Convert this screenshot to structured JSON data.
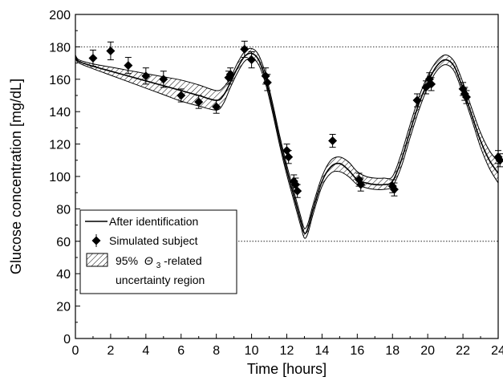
{
  "chart_data": {
    "type": "line",
    "xlabel": "Time [hours]",
    "ylabel": "Glucose concentration [mg/dL]",
    "xlim": [
      0,
      24
    ],
    "ylim": [
      0,
      200
    ],
    "x_ticks": [
      0,
      2,
      4,
      6,
      8,
      10,
      12,
      14,
      16,
      18,
      20,
      22,
      24
    ],
    "y_ticks": [
      0,
      20,
      40,
      60,
      80,
      100,
      120,
      140,
      160,
      180,
      200
    ],
    "reference_lines": [
      180,
      60
    ],
    "grid": false,
    "legend_position": "bottom-left",
    "legend": {
      "line_label": "After identification",
      "marker_label": "Simulated subject",
      "band_label_prefix": "95%",
      "band_label_symbol": "Θ",
      "band_label_subscript": "3",
      "band_label_suffix": "-related",
      "band_label_line2": "uncertainty region"
    },
    "series": [
      {
        "name": "After identification",
        "kind": "line",
        "x": [
          0,
          0.2,
          1,
          2,
          3,
          4,
          5,
          6,
          7,
          8,
          8.4,
          8.8,
          9.2,
          9.6,
          10,
          10.4,
          10.8,
          11.2,
          11.6,
          12,
          12.4,
          12.8,
          13.0,
          13.2,
          13.5,
          14,
          14.5,
          15,
          15.5,
          16,
          16.5,
          17,
          17.5,
          18,
          18.5,
          19,
          19.5,
          20,
          20.5,
          21,
          21.5,
          22,
          22.5,
          23,
          23.5,
          24
        ],
        "y": [
          174,
          171,
          168,
          165,
          162,
          159,
          156,
          153,
          150,
          147,
          150,
          158,
          167,
          174,
          176,
          172,
          160,
          142,
          122,
          104,
          88,
          72,
          65,
          68,
          80,
          97,
          106,
          108,
          104,
          98,
          96,
          95,
          95,
          97,
          110,
          128,
          145,
          158,
          168,
          172,
          168,
          154,
          138,
          122,
          110,
          102
        ]
      },
      {
        "name": "95% Θ3-related uncertainty region",
        "kind": "band",
        "x": [
          0,
          0.2,
          1,
          2,
          3,
          4,
          5,
          6,
          7,
          8,
          8.4,
          8.8,
          9.2,
          9.6,
          10,
          10.4,
          10.8,
          11.2,
          11.6,
          12,
          12.4,
          12.8,
          13.0,
          13.2,
          13.5,
          14,
          14.5,
          15,
          15.5,
          16,
          16.5,
          17,
          17.5,
          18,
          18.5,
          19,
          19.5,
          20,
          20.5,
          21,
          21.5,
          22,
          22.5,
          23,
          23.5,
          24
        ],
        "lower": [
          173,
          170,
          166.5,
          162.5,
          158.5,
          154.5,
          150.5,
          146.5,
          143.5,
          141,
          145,
          155,
          164,
          171,
          173,
          169,
          157,
          139,
          119,
          101,
          85,
          69,
          62,
          65,
          77,
          94,
          102,
          103,
          100,
          95,
          93,
          92,
          92,
          94,
          106,
          124,
          141,
          155,
          165,
          169,
          165,
          151,
          135,
          118,
          105,
          96
        ],
        "upper": [
          175,
          172,
          169.5,
          167.5,
          165.5,
          163.5,
          161.5,
          159.5,
          156.5,
          153,
          155,
          161,
          170,
          177,
          179,
          175,
          163,
          145,
          125,
          107,
          91,
          75,
          68,
          71,
          83,
          100,
          110,
          112,
          109,
          103,
          100,
          99,
          99,
          100,
          114,
          132,
          149,
          162,
          171,
          175,
          171,
          158,
          142,
          127,
          116,
          109
        ]
      },
      {
        "name": "Simulated subject",
        "kind": "scatter",
        "points": [
          {
            "x": 1,
            "y": 173,
            "err": 5
          },
          {
            "x": 2,
            "y": 177.5,
            "err": 5.5
          },
          {
            "x": 3,
            "y": 168.5,
            "err": 5
          },
          {
            "x": 4,
            "y": 162,
            "err": 5
          },
          {
            "x": 5,
            "y": 160,
            "err": 5
          },
          {
            "x": 6,
            "y": 150,
            "err": 4
          },
          {
            "x": 7,
            "y": 146,
            "err": 4
          },
          {
            "x": 8,
            "y": 143,
            "err": 4
          },
          {
            "x": 8.7,
            "y": 161,
            "err": 4
          },
          {
            "x": 8.8,
            "y": 163,
            "err": 4
          },
          {
            "x": 9.6,
            "y": 178.5,
            "err": 5
          },
          {
            "x": 10,
            "y": 172,
            "err": 5
          },
          {
            "x": 10.8,
            "y": 162,
            "err": 5
          },
          {
            "x": 10.9,
            "y": 158,
            "err": 5
          },
          {
            "x": 12,
            "y": 116,
            "err": 4
          },
          {
            "x": 12.1,
            "y": 112,
            "err": 4
          },
          {
            "x": 12.4,
            "y": 97,
            "err": 4
          },
          {
            "x": 12.5,
            "y": 95,
            "err": 4
          },
          {
            "x": 12.6,
            "y": 91,
            "err": 4
          },
          {
            "x": 14.6,
            "y": 122,
            "err": 4
          },
          {
            "x": 16.1,
            "y": 98,
            "err": 4
          },
          {
            "x": 16.2,
            "y": 95,
            "err": 4
          },
          {
            "x": 18,
            "y": 94,
            "err": 4
          },
          {
            "x": 18.1,
            "y": 92,
            "err": 4
          },
          {
            "x": 19.4,
            "y": 147,
            "err": 4
          },
          {
            "x": 19.9,
            "y": 155,
            "err": 4
          },
          {
            "x": 20.1,
            "y": 160,
            "err": 4
          },
          {
            "x": 20.2,
            "y": 157,
            "err": 4
          },
          {
            "x": 22,
            "y": 154,
            "err": 4
          },
          {
            "x": 22.1,
            "y": 151,
            "err": 4
          },
          {
            "x": 22.2,
            "y": 149,
            "err": 4
          },
          {
            "x": 24,
            "y": 112,
            "err": 4
          },
          {
            "x": 24.1,
            "y": 110,
            "err": 4
          }
        ]
      }
    ]
  }
}
